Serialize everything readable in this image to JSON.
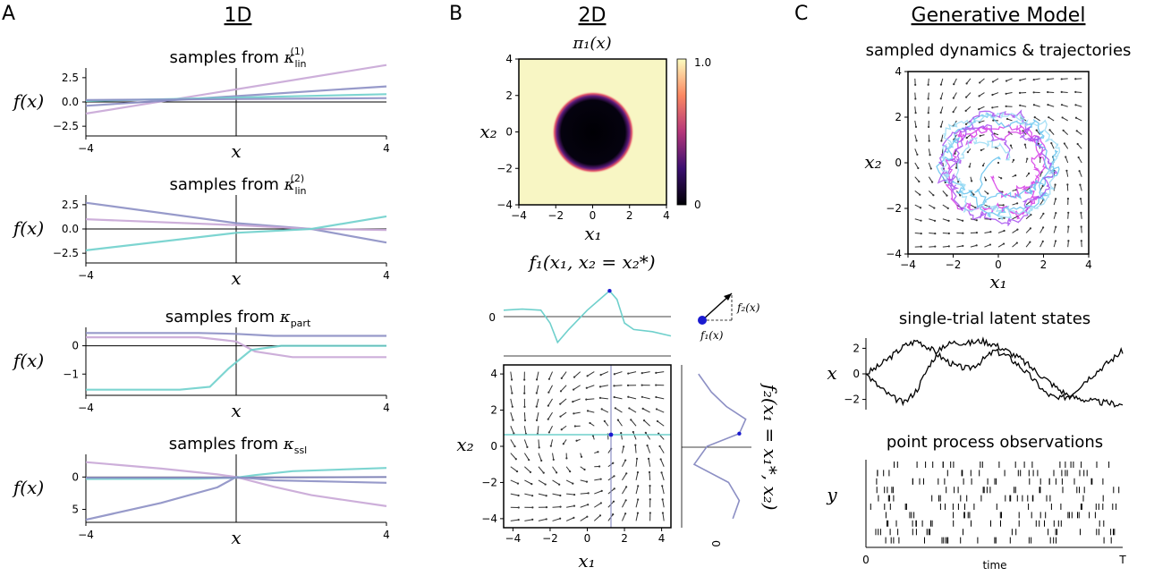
{
  "panels": {
    "a": {
      "letter": "A",
      "heading": "1D"
    },
    "b": {
      "letter": "B",
      "heading": "2D"
    },
    "c": {
      "letter": "C",
      "heading": "Generative Model"
    }
  },
  "colors": {
    "lavender": "#c8a6d6",
    "slate": "#8c8fc4",
    "cyan": "#6fd0cc",
    "blue_dot": "#1a1ad0",
    "magenta": "#d63ae6",
    "sky": "#63c2ef"
  },
  "chart_data": [
    {
      "id": "lin1",
      "type": "line",
      "title_prefix": "samples from",
      "title_symbol": "κ",
      "title_sub": "lin",
      "title_sup": "(1)",
      "xlabel": "x",
      "ylabel": "f(x)",
      "xlim": [
        -4,
        4
      ],
      "ylim": [
        -3.5,
        3.5
      ],
      "xticks": [
        -4,
        4
      ],
      "yticks": [
        2.5,
        0.0,
        -2.5
      ],
      "ytick_labels": [
        "2.5",
        "0.0",
        "−2.5"
      ],
      "xtick_labels": [
        "−4",
        "4"
      ],
      "series": [
        {
          "name": "sample 1",
          "color": "#c8a6d6",
          "x": [
            -4,
            4
          ],
          "y": [
            -1.2,
            3.8
          ]
        },
        {
          "name": "sample 2",
          "color": "#8c8fc4",
          "x": [
            -4,
            4
          ],
          "y": [
            -0.4,
            1.6
          ]
        },
        {
          "name": "sample 3",
          "color": "#6fd0cc",
          "x": [
            -4,
            4
          ],
          "y": [
            0.1,
            0.8
          ]
        },
        {
          "name": "sample 4",
          "color": "#8c8fc4",
          "x": [
            -4,
            4
          ],
          "y": [
            0.2,
            0.4
          ]
        }
      ]
    },
    {
      "id": "lin2",
      "type": "line",
      "title_prefix": "samples from",
      "title_symbol": "κ",
      "title_sub": "lin",
      "title_sup": "(2)",
      "xlabel": "x",
      "ylabel": "f(x)",
      "xlim": [
        -4,
        4
      ],
      "ylim": [
        -3.5,
        3.5
      ],
      "xticks": [
        -4,
        4
      ],
      "yticks": [
        2.5,
        0.0,
        -2.5
      ],
      "ytick_labels": [
        "2.5",
        "0.0",
        "−2.5"
      ],
      "xtick_labels": [
        "−4",
        "4"
      ],
      "series": [
        {
          "name": "sample 1",
          "color": "#8c8fc4",
          "x": [
            -4,
            0,
            2,
            4
          ],
          "y": [
            2.7,
            0.6,
            0.0,
            -1.4
          ]
        },
        {
          "name": "sample 2",
          "color": "#c8a6d6",
          "x": [
            -4,
            0,
            2,
            4
          ],
          "y": [
            1.0,
            0.4,
            0.0,
            -0.1
          ]
        },
        {
          "name": "sample 3",
          "color": "#6fd0cc",
          "x": [
            -4,
            0,
            2,
            4
          ],
          "y": [
            -2.2,
            -0.4,
            0.0,
            1.3
          ]
        }
      ]
    },
    {
      "id": "part",
      "type": "line",
      "title_prefix": "samples from",
      "title_symbol": "κ",
      "title_sub": "part",
      "title_sup": "",
      "xlabel": "x",
      "ylabel": "f(x)",
      "xlim": [
        -4,
        4
      ],
      "ylim": [
        -1.75,
        0.65
      ],
      "xticks": [
        -4,
        4
      ],
      "yticks": [
        0,
        -1
      ],
      "ytick_labels": [
        "0",
        "−1"
      ],
      "xtick_labels": [
        "−4",
        "4"
      ],
      "series": [
        {
          "name": "sample 1",
          "color": "#8c8fc4",
          "x": [
            -4,
            -1,
            0,
            1,
            4
          ],
          "y": [
            0.45,
            0.45,
            0.42,
            0.35,
            0.35
          ]
        },
        {
          "name": "sample 2",
          "color": "#c8a6d6",
          "x": [
            -4,
            -1,
            0,
            0.5,
            1.5,
            4
          ],
          "y": [
            0.3,
            0.3,
            0.15,
            -0.2,
            -0.4,
            -0.4
          ]
        },
        {
          "name": "sample 3",
          "color": "#6fd0cc",
          "x": [
            -4,
            -1.5,
            -0.7,
            -0.2,
            0.4,
            1.2,
            4
          ],
          "y": [
            -1.55,
            -1.55,
            -1.45,
            -0.8,
            -0.15,
            0.0,
            0.0
          ]
        }
      ]
    },
    {
      "id": "ssl",
      "type": "line",
      "title_prefix": "samples from",
      "title_symbol": "κ",
      "title_sub": "ssl",
      "title_sup": "",
      "xlabel": "x",
      "ylabel": "f(x)",
      "xlim": [
        -4,
        4
      ],
      "ylim": [
        7,
        -3.5
      ],
      "xticks": [
        -4,
        4
      ],
      "yticks": [
        0,
        5
      ],
      "ytick_labels": [
        "0",
        "5"
      ],
      "xtick_labels": [
        "−4",
        "4"
      ],
      "series": [
        {
          "name": "sample 1",
          "color": "#c8a6d6",
          "x": [
            -4,
            -2,
            -0.5,
            0,
            1,
            2,
            4
          ],
          "y": [
            -2.3,
            -1.3,
            -0.4,
            0,
            1.5,
            2.8,
            4.5
          ]
        },
        {
          "name": "sample 2",
          "color": "#8c8fc4",
          "x": [
            -4,
            -2,
            -0.5,
            0,
            1,
            4
          ],
          "y": [
            6.6,
            4.0,
            1.6,
            0,
            0.5,
            0.9
          ]
        },
        {
          "name": "sample 3",
          "color": "#6fd0cc",
          "x": [
            -4,
            -1,
            0,
            0.5,
            1.5,
            4
          ],
          "y": [
            0.3,
            0.25,
            0.1,
            -0.3,
            -0.9,
            -1.4
          ]
        },
        {
          "name": "sample 4",
          "color": "#8c8fc4",
          "x": [
            -4,
            0,
            4
          ],
          "y": [
            0.1,
            0.1,
            0.0
          ]
        }
      ]
    },
    {
      "id": "pi1",
      "type": "heatmap",
      "title": "π₁(x)",
      "xlabel": "x₁",
      "ylabel": "x₂",
      "xlim": [
        -4,
        4
      ],
      "ylim": [
        -4,
        4
      ],
      "xticks": [
        -4,
        -2,
        0,
        2,
        4
      ],
      "yticks": [
        4,
        2,
        0,
        -2,
        -4
      ],
      "xtick_labels": [
        "−4",
        "−2",
        "0",
        "2",
        "4"
      ],
      "ytick_labels": [
        "4",
        "2",
        "0",
        "−2",
        "−4"
      ],
      "description": "dark disc of radius ≈ 2 centred at origin on pale background",
      "colorbar": {
        "max_label": "1.0",
        "min_label": "0",
        "cmap": "magma"
      }
    },
    {
      "id": "f1slice",
      "type": "line",
      "title": "f₁(x₁, x₂ = x₂*)",
      "ytick_labels": [
        "0"
      ],
      "color": "#6fd0cc",
      "x": [
        -4.5,
        -3.5,
        -2.5,
        -2.0,
        -1.6,
        -1.0,
        0.0,
        0.8,
        1.2,
        1.6,
        2.0,
        2.5,
        3.5,
        4.5
      ],
      "y": [
        0.3,
        0.35,
        0.3,
        -0.3,
        -1.2,
        -0.6,
        0.3,
        0.9,
        1.2,
        0.8,
        -0.3,
        -0.6,
        -0.7,
        -0.9
      ],
      "marker": {
        "x": 1.2,
        "y": 1.2
      }
    },
    {
      "id": "vectorfield",
      "type": "scatter",
      "xlabel": "x₁",
      "ylabel": "x₂",
      "xlim": [
        -4.5,
        4.5
      ],
      "ylim": [
        -4.5,
        4.5
      ],
      "xticks": [
        -4,
        -2,
        0,
        2,
        4
      ],
      "yticks": [
        4,
        2,
        0,
        -2,
        -4
      ],
      "xtick_labels": [
        "−4",
        "−2",
        "0",
        "2",
        "4"
      ],
      "ytick_labels": [
        "4",
        "2",
        "0",
        "−2",
        "−4"
      ],
      "description": "rotational flow field (quiver)",
      "slice_point": {
        "x": 1.2,
        "y": 0.7
      }
    },
    {
      "id": "f2slice",
      "type": "line",
      "ylabel": "f₂(x₁ = x₁*, x₂)",
      "xtick_labels": [
        "0"
      ],
      "color": "#8c8fc4",
      "x2": [
        4.0,
        3.0,
        2.2,
        1.5,
        0.7,
        0.0,
        -1.0,
        -2.0,
        -3.0,
        -4.0
      ],
      "f": [
        -0.4,
        -0.1,
        0.25,
        0.7,
        0.55,
        -0.2,
        -0.5,
        0.3,
        0.55,
        0.4
      ],
      "marker": {
        "x2": 0.7,
        "f": 0.55
      }
    },
    {
      "id": "trajectories",
      "type": "scatter",
      "title": "sampled dynamics & trajectories",
      "xlabel": "x₁",
      "ylabel": "x₂",
      "xlim": [
        -4,
        4
      ],
      "ylim": [
        -4,
        4
      ],
      "xticks": [
        -4,
        -2,
        0,
        2,
        4
      ],
      "yticks": [
        4,
        2,
        0,
        -2,
        -4
      ],
      "xtick_labels": [
        "−4",
        "−2",
        "0",
        "2",
        "4"
      ],
      "ytick_labels": [
        "4",
        "2",
        "0",
        "−2",
        "−4"
      ],
      "description": "ring-shaped noisy trajectories near radius 2, coloured magenta to cyan"
    },
    {
      "id": "latents",
      "type": "line",
      "title": "single-trial latent states",
      "ylabel": "x",
      "ylim": [
        -2.8,
        2.8
      ],
      "yticks": [
        2,
        0,
        -2
      ],
      "ytick_labels": [
        "2",
        "0",
        "−2"
      ],
      "series": [
        {
          "name": "latent 1",
          "color": "#000000",
          "y": [
            0.0,
            0.6,
            1.4,
            2.2,
            2.6,
            2.0,
            1.2,
            0.6,
            0.4,
            1.0,
            1.8,
            1.4,
            0.6,
            -0.4,
            -1.5,
            -2.0,
            -1.6,
            -0.6,
            0.2,
            1.0,
            1.8
          ]
        },
        {
          "name": "latent 2",
          "color": "#000000",
          "y": [
            0.0,
            -1.0,
            -1.8,
            -2.3,
            -1.2,
            0.8,
            2.2,
            2.5,
            2.4,
            2.6,
            2.3,
            1.8,
            1.2,
            0.4,
            -0.4,
            -1.2,
            -1.8,
            -2.0,
            -2.2,
            -2.3,
            -2.4
          ]
        }
      ]
    },
    {
      "id": "spikes",
      "type": "scatter",
      "title": "point process observations",
      "ylabel": "y",
      "xlabel": "time",
      "xtick_labels": [
        "0",
        "T"
      ],
      "neurons": 10
    }
  ],
  "ring_sketch": {
    "f1_label": "f₁(x)",
    "f2_label": "f₂(x)"
  }
}
